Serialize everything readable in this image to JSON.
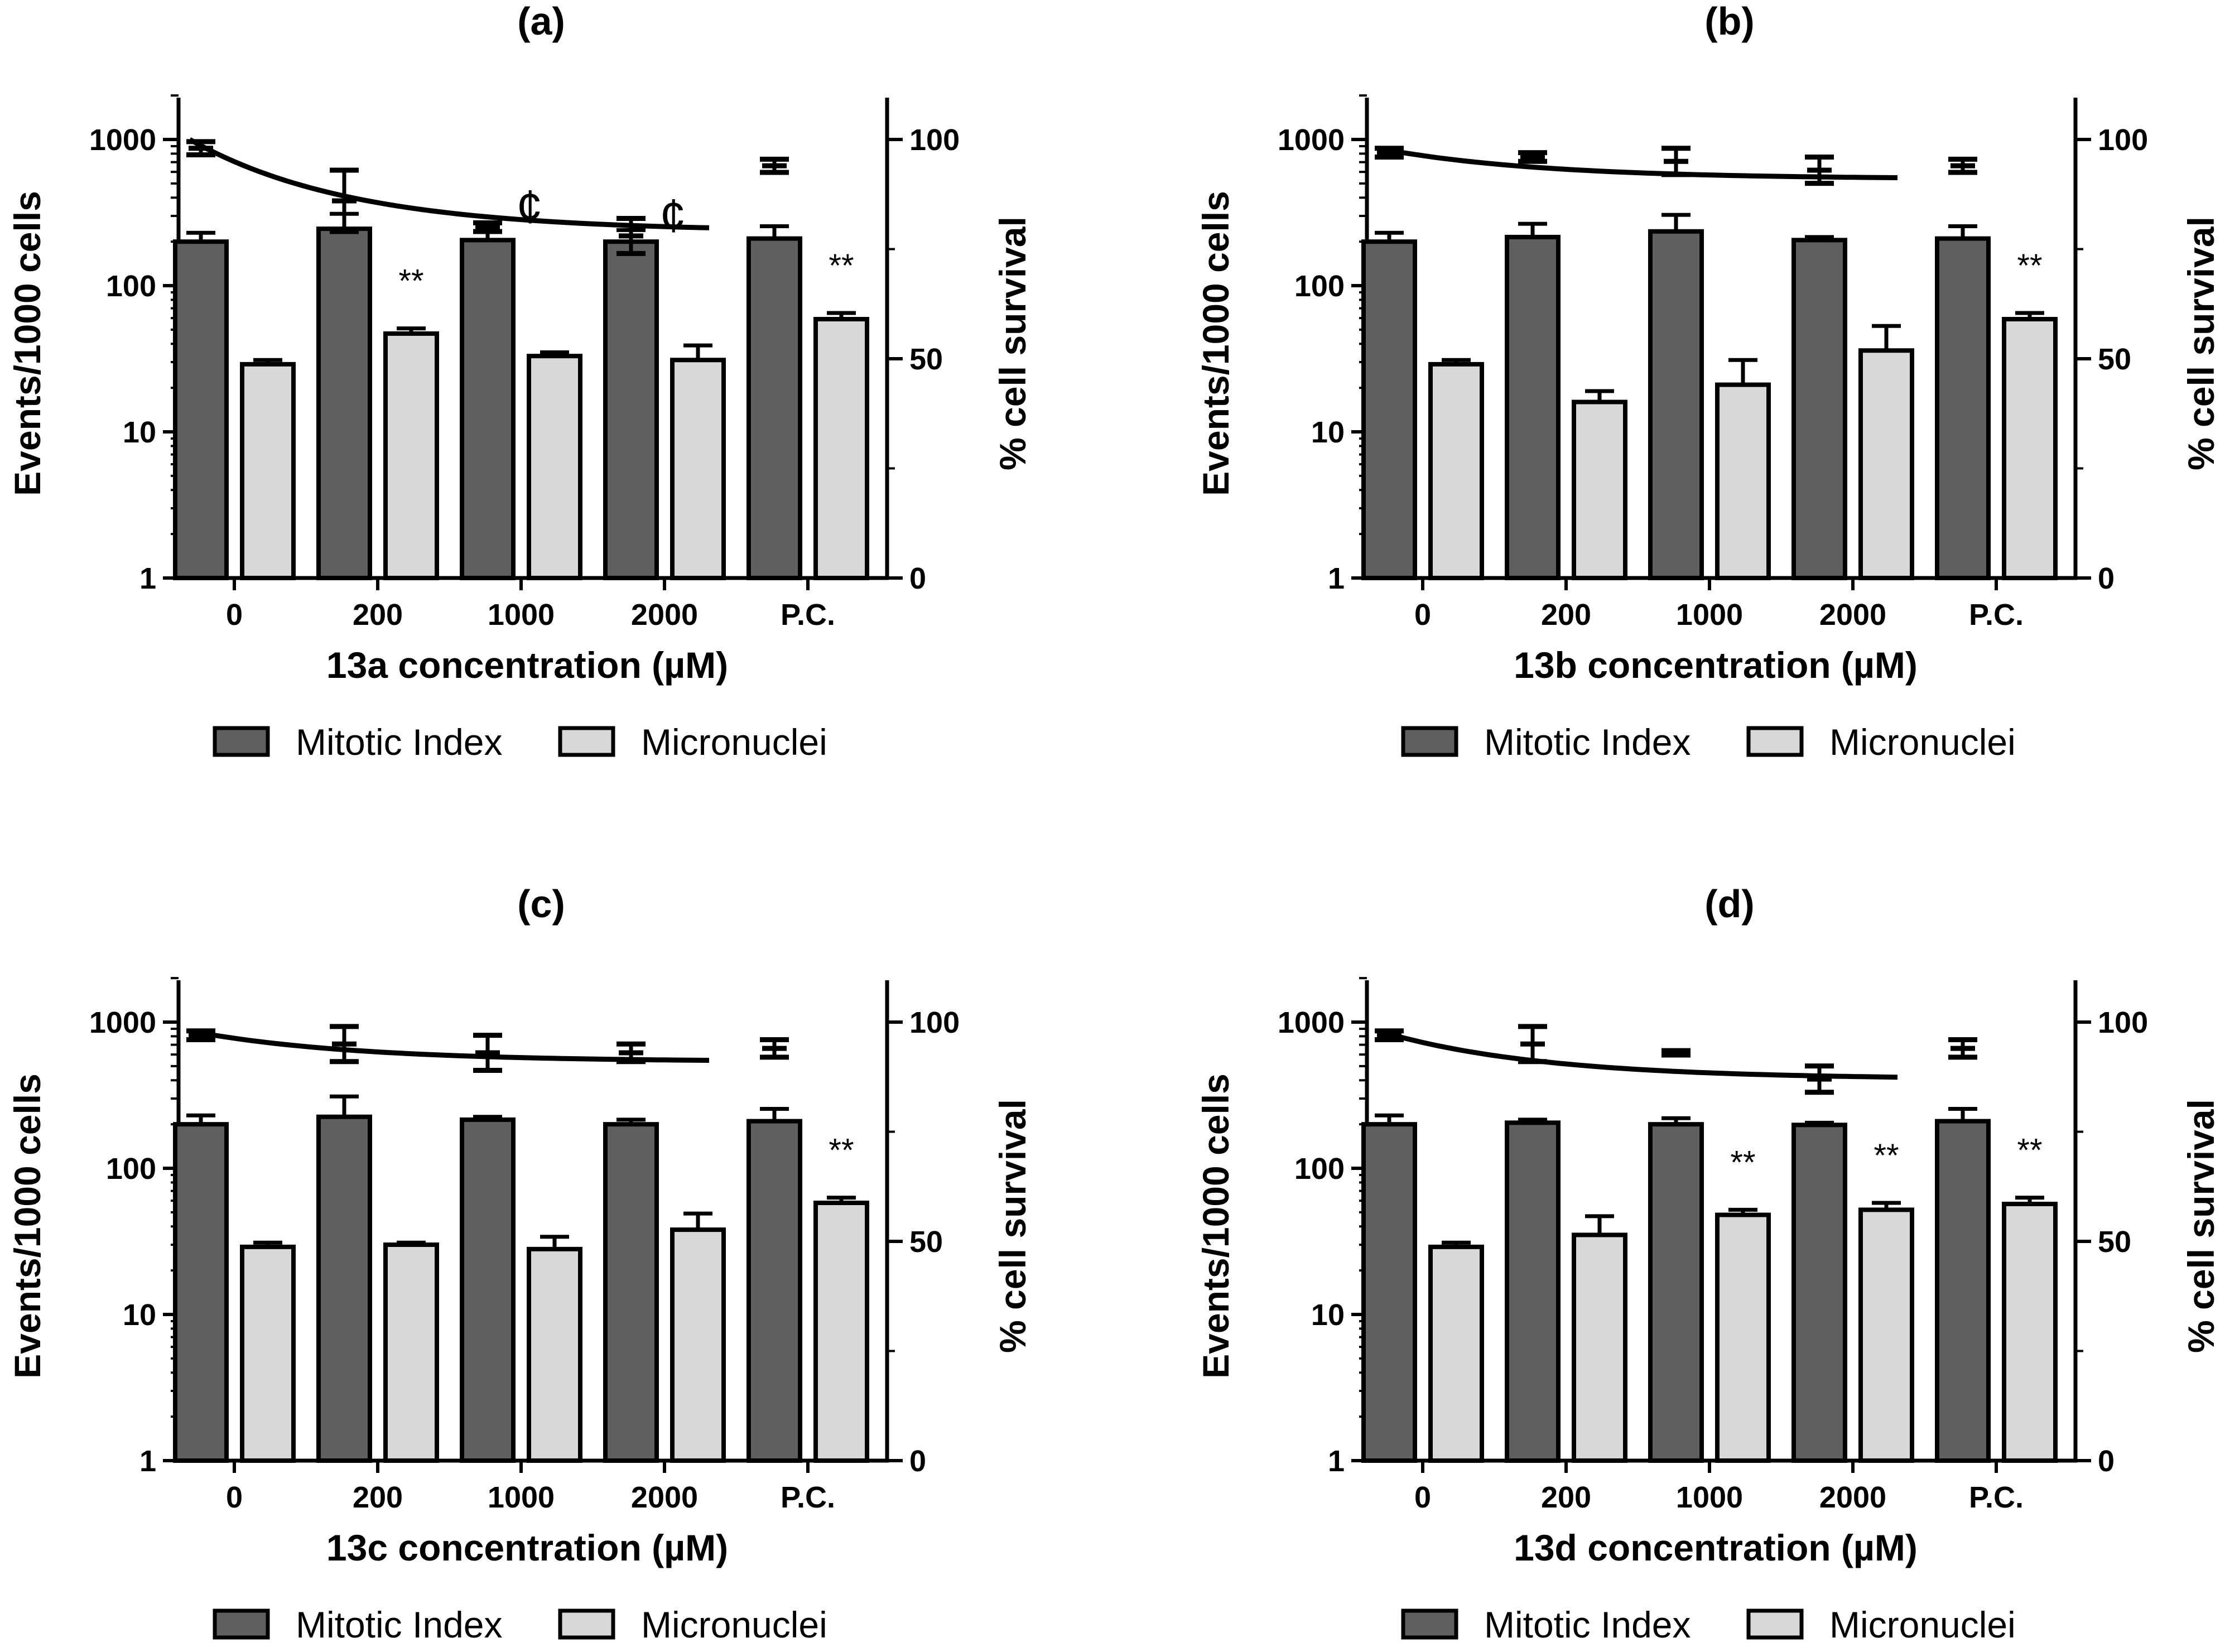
{
  "chart_data": [
    {
      "type": "bar",
      "title": "(a)",
      "xlabel": "13a concentration (µM)",
      "ylabel": "Events/1000 cells",
      "y2label": "% cell survival",
      "yscale": "log",
      "ylim": [
        1,
        2000
      ],
      "yticks": [
        "1",
        "10",
        "100",
        "1000"
      ],
      "y2lim": [
        0,
        110
      ],
      "y2ticks": [
        "0",
        "50",
        "100"
      ],
      "categories": [
        "0",
        "200",
        "1000",
        "2000",
        "P.C."
      ],
      "series": [
        {
          "name": "Mitotic Index",
          "color": "#5f5f5f",
          "values": [
            200,
            245,
            205,
            200,
            210
          ],
          "errors": [
            230,
            310,
            235,
            240,
            255
          ]
        },
        {
          "name": "Micronuclei",
          "color": "#d8d8d8",
          "values": [
            29,
            47,
            33,
            31,
            59
          ],
          "errors": [
            31,
            51,
            35,
            39,
            65
          ]
        }
      ],
      "survival": {
        "points": [
          {
            "category": "0",
            "mean": 98,
            "sd": 1.5
          },
          {
            "category": "200",
            "mean": 86,
            "sd": 7
          },
          {
            "category": "1000",
            "mean": 80,
            "sd": 1
          },
          {
            "category": "2000",
            "mean": 78,
            "sd": 4
          },
          {
            "category": "P.C.",
            "mean": 94,
            "sd": 1.5
          }
        ],
        "curve": {
          "from": 0,
          "to": 3,
          "start": 100,
          "end": 79
        }
      },
      "annotations": [
        {
          "text": "**",
          "category": "200",
          "series": "Micronuclei"
        },
        {
          "text": "**",
          "category": "P.C.",
          "series": "Micronuclei"
        },
        {
          "text": "¢",
          "category": "1000",
          "series": "survival"
        },
        {
          "text": "¢",
          "category": "2000",
          "series": "survival"
        }
      ]
    },
    {
      "type": "bar",
      "title": "(b)",
      "xlabel": "13b concentration (µM)",
      "ylabel": "Events/1000 cells",
      "y2label": "% cell survival",
      "yscale": "log",
      "ylim": [
        1,
        2000
      ],
      "yticks": [
        "1",
        "10",
        "100",
        "1000"
      ],
      "y2lim": [
        0,
        110
      ],
      "y2ticks": [
        "0",
        "50",
        "100"
      ],
      "categories": [
        "0",
        "200",
        "1000",
        "2000",
        "P.C."
      ],
      "series": [
        {
          "name": "Mitotic Index",
          "color": "#5f5f5f",
          "values": [
            200,
            215,
            235,
            205,
            210
          ],
          "errors": [
            230,
            265,
            305,
            215,
            255
          ]
        },
        {
          "name": "Micronuclei",
          "color": "#d8d8d8",
          "values": [
            29,
            16,
            21,
            36,
            59
          ],
          "errors": [
            31,
            19,
            31,
            53,
            65
          ]
        }
      ],
      "survival": {
        "points": [
          {
            "category": "0",
            "mean": 97,
            "sd": 1
          },
          {
            "category": "200",
            "mean": 96,
            "sd": 1
          },
          {
            "category": "1000",
            "mean": 95,
            "sd": 3
          },
          {
            "category": "2000",
            "mean": 93,
            "sd": 3
          },
          {
            "category": "P.C.",
            "mean": 94,
            "sd": 1.5
          }
        ],
        "curve": {
          "from": 0,
          "to": 3,
          "start": 98,
          "end": 91
        }
      },
      "annotations": [
        {
          "text": "**",
          "category": "P.C.",
          "series": "Micronuclei"
        }
      ]
    },
    {
      "type": "bar",
      "title": "(c)",
      "xlabel": "13c concentration (µM)",
      "ylabel": "Events/1000 cells",
      "y2label": "% cell survival",
      "yscale": "log",
      "ylim": [
        1,
        2000
      ],
      "yticks": [
        "1",
        "10",
        "100",
        "1000"
      ],
      "y2lim": [
        0,
        110
      ],
      "y2ticks": [
        "0",
        "50",
        "100"
      ],
      "categories": [
        "0",
        "200",
        "1000",
        "2000",
        "P.C."
      ],
      "series": [
        {
          "name": "Mitotic Index",
          "color": "#5f5f5f",
          "values": [
            200,
            225,
            215,
            200,
            210
          ],
          "errors": [
            230,
            310,
            225,
            215,
            255
          ]
        },
        {
          "name": "Micronuclei",
          "color": "#d8d8d8",
          "values": [
            29,
            30,
            28,
            38,
            58
          ],
          "errors": [
            31,
            31,
            34,
            49,
            63
          ]
        }
      ],
      "survival": {
        "points": [
          {
            "category": "0",
            "mean": 97,
            "sd": 1
          },
          {
            "category": "200",
            "mean": 95,
            "sd": 4
          },
          {
            "category": "1000",
            "mean": 93,
            "sd": 4
          },
          {
            "category": "2000",
            "mean": 93,
            "sd": 2
          },
          {
            "category": "P.C.",
            "mean": 94,
            "sd": 2
          }
        ],
        "curve": {
          "from": 0,
          "to": 3,
          "start": 98,
          "end": 91
        }
      },
      "annotations": [
        {
          "text": "**",
          "category": "P.C.",
          "series": "Micronuclei"
        }
      ]
    },
    {
      "type": "bar",
      "title": "(d)",
      "xlabel": "13d concentration (µM)",
      "ylabel": "Events/1000 cells",
      "y2label": "% cell survival",
      "yscale": "log",
      "ylim": [
        1,
        2000
      ],
      "yticks": [
        "1",
        "10",
        "100",
        "1000"
      ],
      "y2lim": [
        0,
        110
      ],
      "y2ticks": [
        "0",
        "50",
        "100"
      ],
      "categories": [
        "0",
        "200",
        "1000",
        "2000",
        "P.C."
      ],
      "series": [
        {
          "name": "Mitotic Index",
          "color": "#5f5f5f",
          "values": [
            200,
            205,
            200,
            198,
            210
          ],
          "errors": [
            230,
            215,
            220,
            205,
            255
          ]
        },
        {
          "name": "Micronuclei",
          "color": "#d8d8d8",
          "values": [
            29,
            35,
            48,
            52,
            57
          ],
          "errors": [
            31,
            47,
            52,
            58,
            63
          ]
        }
      ],
      "survival": {
        "points": [
          {
            "category": "0",
            "mean": 97,
            "sd": 1
          },
          {
            "category": "200",
            "mean": 95,
            "sd": 4
          },
          {
            "category": "1000",
            "mean": 93,
            "sd": 0.5
          },
          {
            "category": "2000",
            "mean": 87,
            "sd": 3
          },
          {
            "category": "P.C.",
            "mean": 94,
            "sd": 2
          }
        ],
        "curve": {
          "from": 0,
          "to": 3,
          "start": 98,
          "end": 87
        }
      },
      "annotations": [
        {
          "text": "**",
          "category": "1000",
          "series": "Micronuclei"
        },
        {
          "text": "**",
          "category": "2000",
          "series": "Micronuclei"
        },
        {
          "text": "**",
          "category": "P.C.",
          "series": "Micronuclei"
        }
      ]
    }
  ]
}
